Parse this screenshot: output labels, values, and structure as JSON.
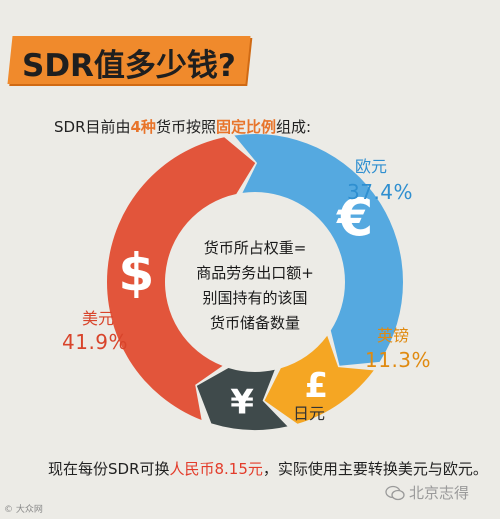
{
  "header": {
    "title": "SDR值多少钱?"
  },
  "intro": {
    "prefix": "SDR目前由",
    "count": "4种",
    "middle": "货币按照",
    "emphasis": "固定比例",
    "suffix": "组成:"
  },
  "center_text": [
    "货币所占权重=",
    "商品劳务出口额+",
    "别国持有的该国",
    "货币储备数量"
  ],
  "footer": {
    "prefix": "现在每份SDR可换",
    "highlight": "人民币8.15元",
    "suffix": "，实际使用主要转换美元与欧元。"
  },
  "watermark": {
    "left": "© 大众网",
    "right": "北京志得"
  },
  "colors": {
    "background": "#ecebe6",
    "banner": "#f08a2c",
    "usd": "#e2553b",
    "eur": "#55a9e0",
    "gbp": "#f5a623",
    "jpy": "#3f4a4b"
  },
  "chart_data": {
    "type": "pie",
    "style": "donut-arrows",
    "series": [
      {
        "name": "欧元",
        "value": 37.4,
        "label": "37.4%",
        "icon": "euro-icon",
        "symbol": "€"
      },
      {
        "name": "英镑",
        "value": 11.3,
        "label": "11.3%",
        "icon": "pound-icon",
        "symbol": "£"
      },
      {
        "name": "日元",
        "value": 9.4,
        "label": "",
        "icon": "yen-icon",
        "symbol": "¥"
      },
      {
        "name": "美元",
        "value": 41.9,
        "label": "41.9%",
        "icon": "dollar-icon",
        "symbol": "$"
      }
    ]
  }
}
